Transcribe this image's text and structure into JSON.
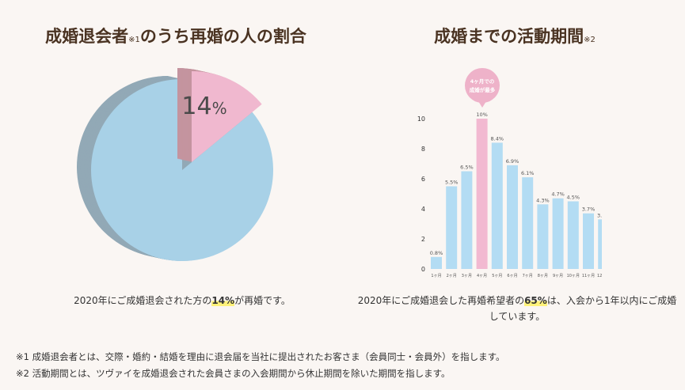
{
  "left": {
    "title_main_1": "成婚退会者",
    "title_note": "※1",
    "title_main_2": "のうち再婚の人の割合",
    "pie_label_number": "14",
    "pie_label_unit": "%",
    "caption_pre": "2020年にご成婚退会された方の",
    "caption_highlight": "14%",
    "caption_post": "が再婚です。"
  },
  "right": {
    "title_main": "成婚までの活動期間",
    "title_note": "※2",
    "callout_line1": "4ヶ月での",
    "callout_line2": "成婚が最多",
    "caption_pre": "2020年にご成婚退会した再婚希望者の",
    "caption_highlight": "65%",
    "caption_post": "は、入会から1年以内にご成婚",
    "caption_line2": "しています。"
  },
  "footnotes": [
    "※1 成婚退会者とは、交際・婚約・結婚を理由に退会届を当社に提出されたお客さま（会員同士・会員外）を指します。",
    "※2 活動期間とは、ツヴァイを成婚退会された会員さまの入会期間から休止期間を除いた期間を指します。"
  ],
  "colors": {
    "pie_main": "#a8d1e7",
    "pie_main_side": "#92a9b6",
    "pie_slice": "#f0b8cf",
    "pie_slice_side": "#c4949f",
    "bar": "#b3dcf3",
    "bar_highlight": "#f2b9d1",
    "title": "#4a3322",
    "highlight": "#fff27a"
  },
  "chart_data": [
    {
      "type": "pie",
      "values": [
        86,
        14
      ],
      "labels": [
        "",
        "14%"
      ],
      "highlight_index": 1
    },
    {
      "type": "bar",
      "categories": [
        "1ヶ月",
        "2ヶ月",
        "3ヶ月",
        "4ヶ月",
        "5ヶ月",
        "6ヶ月",
        "7ヶ月",
        "8ヶ月",
        "9ヶ月",
        "10ヶ月",
        "11ヶ月",
        "12ヶ月"
      ],
      "values": [
        0.8,
        5.5,
        6.5,
        10,
        8.4,
        6.9,
        6.1,
        4.3,
        4.7,
        4.5,
        3.7,
        3.3
      ],
      "value_labels": [
        "0.8%",
        "5.5%",
        "6.5%",
        "10%",
        "8.4%",
        "6.9%",
        "6.1%",
        "4.3%",
        "4.7%",
        "4.5%",
        "3.7%",
        "3.3%"
      ],
      "highlight_index": 3,
      "yticks": [
        "0",
        "2",
        "4",
        "6",
        "8",
        "10"
      ],
      "ylim": [
        0,
        10
      ],
      "grid": false
    }
  ]
}
